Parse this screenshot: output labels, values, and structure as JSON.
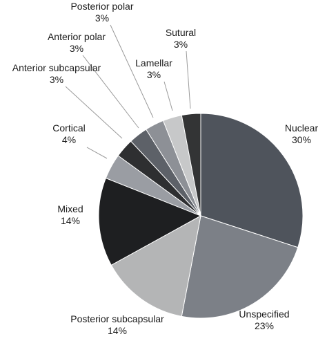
{
  "chart_data": {
    "type": "pie",
    "title": "",
    "slices": [
      {
        "name": "Nuclear",
        "value": 30,
        "label": "30%",
        "color": "#4f545c"
      },
      {
        "name": "Unspecified",
        "value": 23,
        "label": "23%",
        "color": "#7c8087"
      },
      {
        "name": "Posterior subcapsular",
        "value": 14,
        "label": "14%",
        "color": "#b4b5b6"
      },
      {
        "name": "Mixed",
        "value": 14,
        "label": "14%",
        "color": "#1e1f21"
      },
      {
        "name": "Cortical",
        "value": 4,
        "label": "4%",
        "color": "#9a9da3"
      },
      {
        "name": "Anterior subcapsular",
        "value": 3,
        "label": "3%",
        "color": "#2e2f31"
      },
      {
        "name": "Anterior polar",
        "value": 3,
        "label": "3%",
        "color": "#5d6168"
      },
      {
        "name": "Posterior polar",
        "value": 3,
        "label": "3%",
        "color": "#8d9096"
      },
      {
        "name": "Lamellar",
        "value": 3,
        "label": "3%",
        "color": "#c7c8c9"
      },
      {
        "name": "Sutural",
        "value": 3,
        "label": "3%",
        "color": "#333435"
      }
    ]
  }
}
